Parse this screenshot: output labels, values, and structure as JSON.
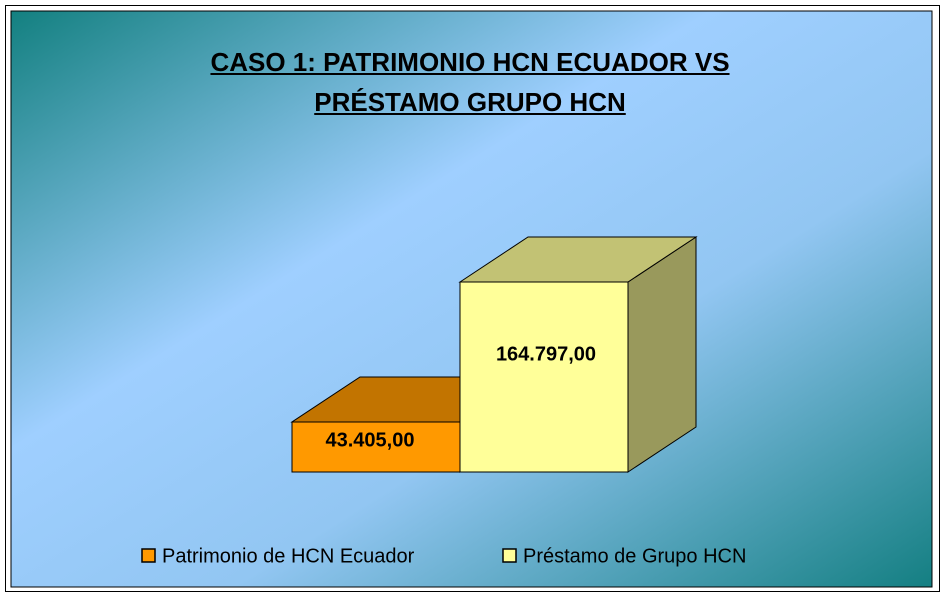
{
  "chart_data": {
    "type": "bar",
    "title": "CASO 1: PATRIMONIO HCN ECUADOR VS PRÉSTAMO GRUPO HCN",
    "categories": [
      null
    ],
    "series": [
      {
        "name": "Patrimonio de HCN Ecuador",
        "color": "#ff9900",
        "values": [
          43405
        ],
        "value_labels": [
          "43.405,00"
        ]
      },
      {
        "name": "Préstamo de Grupo HCN",
        "color": "#ffff99",
        "values": [
          164797
        ],
        "value_labels": [
          "164.797,00"
        ]
      }
    ],
    "legend": "bottom"
  }
}
